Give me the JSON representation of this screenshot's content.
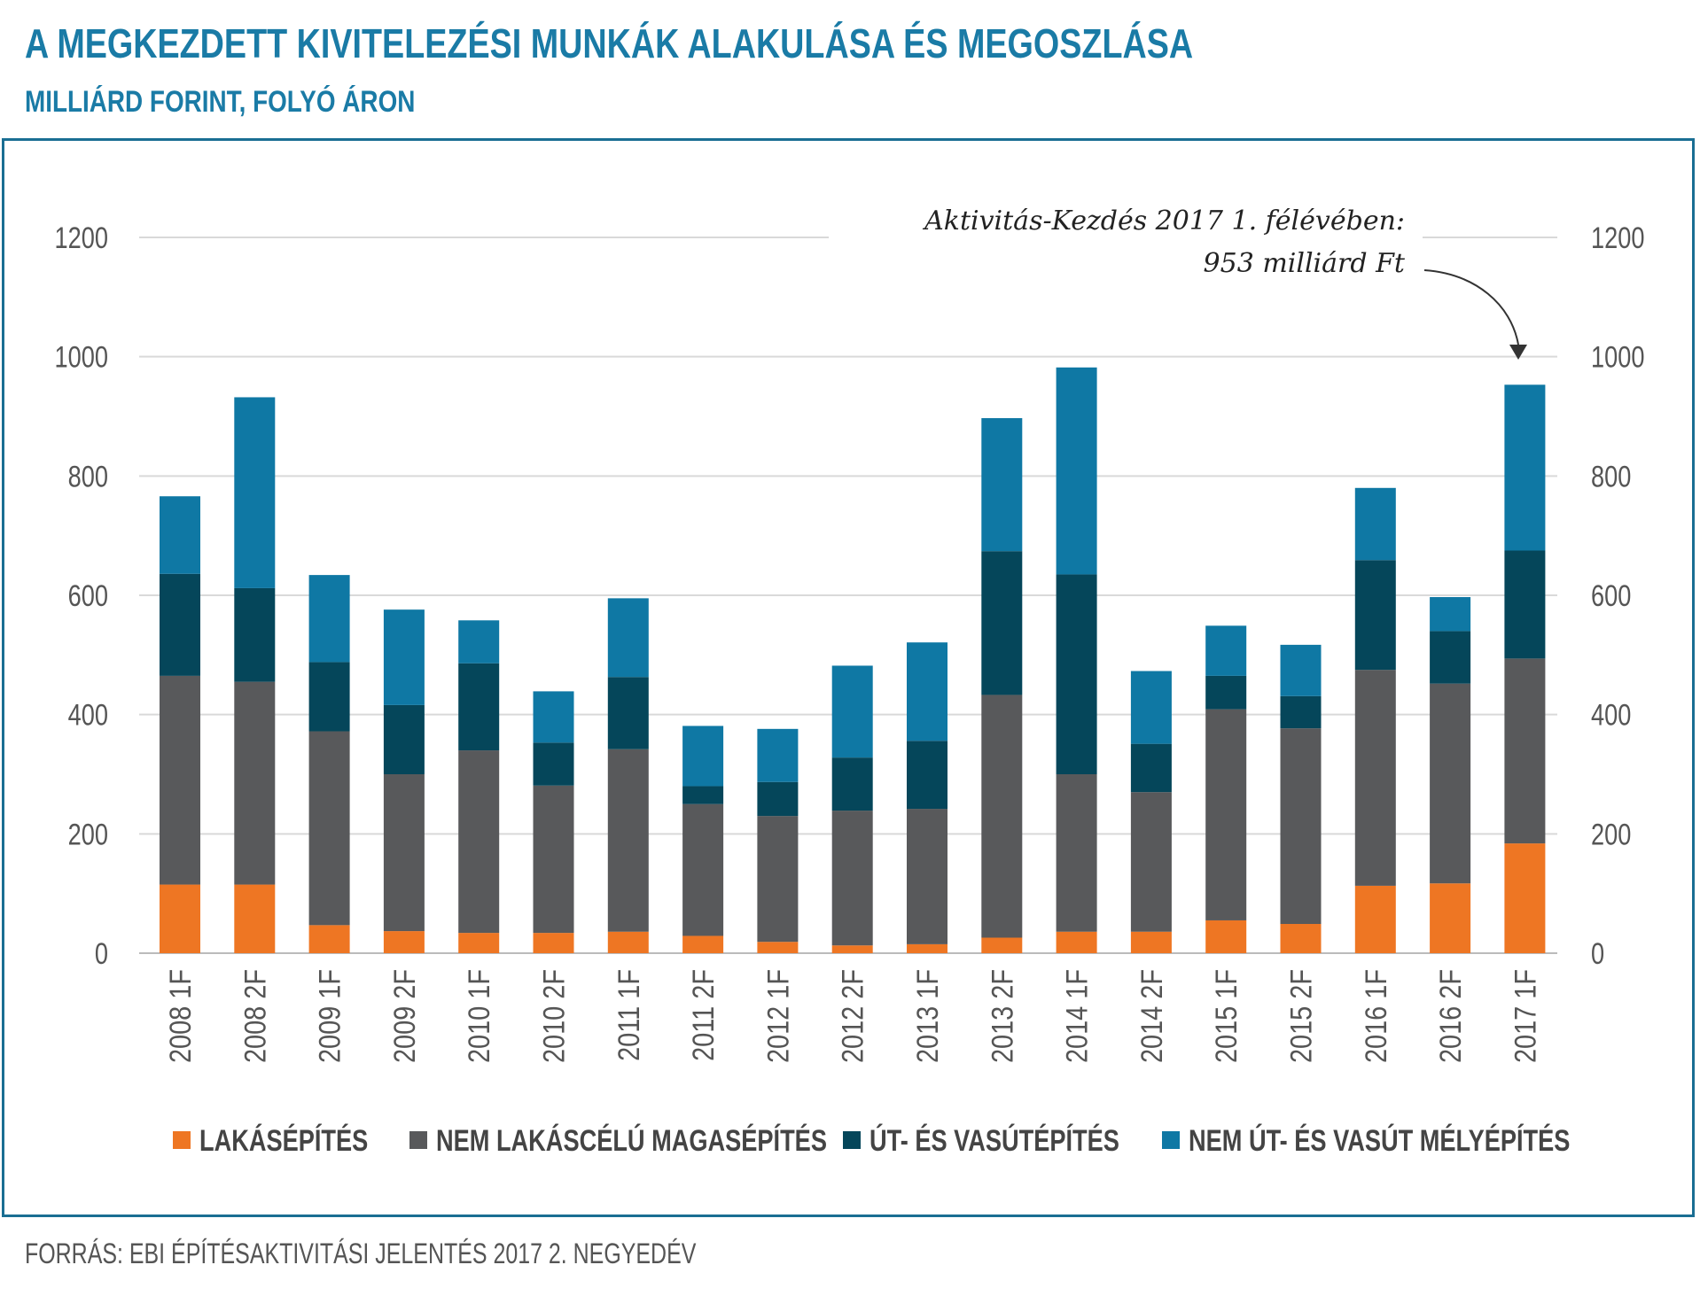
{
  "header": {
    "title": "A MEGKEZDETT KIVITELEZÉSI MUNKÁK ALAKULÁSA ÉS MEGOSZLÁSA",
    "subtitle": "MILLIÁRD FORINT, FOLYÓ ÁRON"
  },
  "footer": {
    "source": "FORRÁS: EBI ÉPÍTÉSAKTIVITÁSI JELENTÉS 2017 2. NEGYEDÉV"
  },
  "chart_data": {
    "type": "bar",
    "stacked": true,
    "title": "A MEGKEZDETT KIVITELEZÉSI MUNKÁK ALAKULÁSA ÉS MEGOSZLÁSA",
    "ylabel": "MILLIÁRD FORINT, FOLYÓ ÁRON",
    "ylim": [
      0,
      1200
    ],
    "yticks": [
      0,
      200,
      400,
      600,
      800,
      1000,
      1200
    ],
    "grid": true,
    "legend_position": "bottom",
    "categories": [
      "2008 1F",
      "2008 2F",
      "2009 1F",
      "2009 2F",
      "2010 1F",
      "2010 2F",
      "2011 1F",
      "2011 2F",
      "2012 1F",
      "2012 2F",
      "2013 1F",
      "2013 2F",
      "2014 1F",
      "2014 2F",
      "2015 1F",
      "2015 2F",
      "2016 1F",
      "2016 2F",
      "2017 1F"
    ],
    "series": [
      {
        "name": "LAKÁSÉPÍTÉS",
        "color": "#ee7623",
        "values": [
          115,
          115,
          47,
          37,
          34,
          34,
          36,
          29,
          19,
          13,
          15,
          26,
          36,
          36,
          55,
          49,
          113,
          117,
          184
        ]
      },
      {
        "name": "NEM LAKÁSCÉLÚ MAGASÉPÍTÉS",
        "color": "#58595b",
        "values": [
          350,
          340,
          325,
          263,
          306,
          247,
          306,
          221,
          211,
          226,
          227,
          407,
          264,
          234,
          354,
          328,
          362,
          335,
          310
        ]
      },
      {
        "name": "ÚT- ÉS VASÚTÉPÍTÉS",
        "color": "#05465a",
        "values": [
          171,
          157,
          116,
          116,
          146,
          72,
          121,
          30,
          57,
          89,
          114,
          241,
          335,
          81,
          56,
          54,
          184,
          88,
          181
        ]
      },
      {
        "name": "NEM ÚT- ÉS VASÚT MÉLYÉPÍTÉS",
        "color": "#0f78a4",
        "values": [
          130,
          320,
          146,
          160,
          72,
          86,
          132,
          101,
          89,
          154,
          165,
          223,
          347,
          122,
          84,
          86,
          121,
          57,
          278
        ]
      }
    ],
    "annotation": {
      "line1": "Aktivitás-Kezdés 2017 1. félévében:",
      "line2": "953 milliárd Ft",
      "target_category": "2017 1F"
    }
  }
}
